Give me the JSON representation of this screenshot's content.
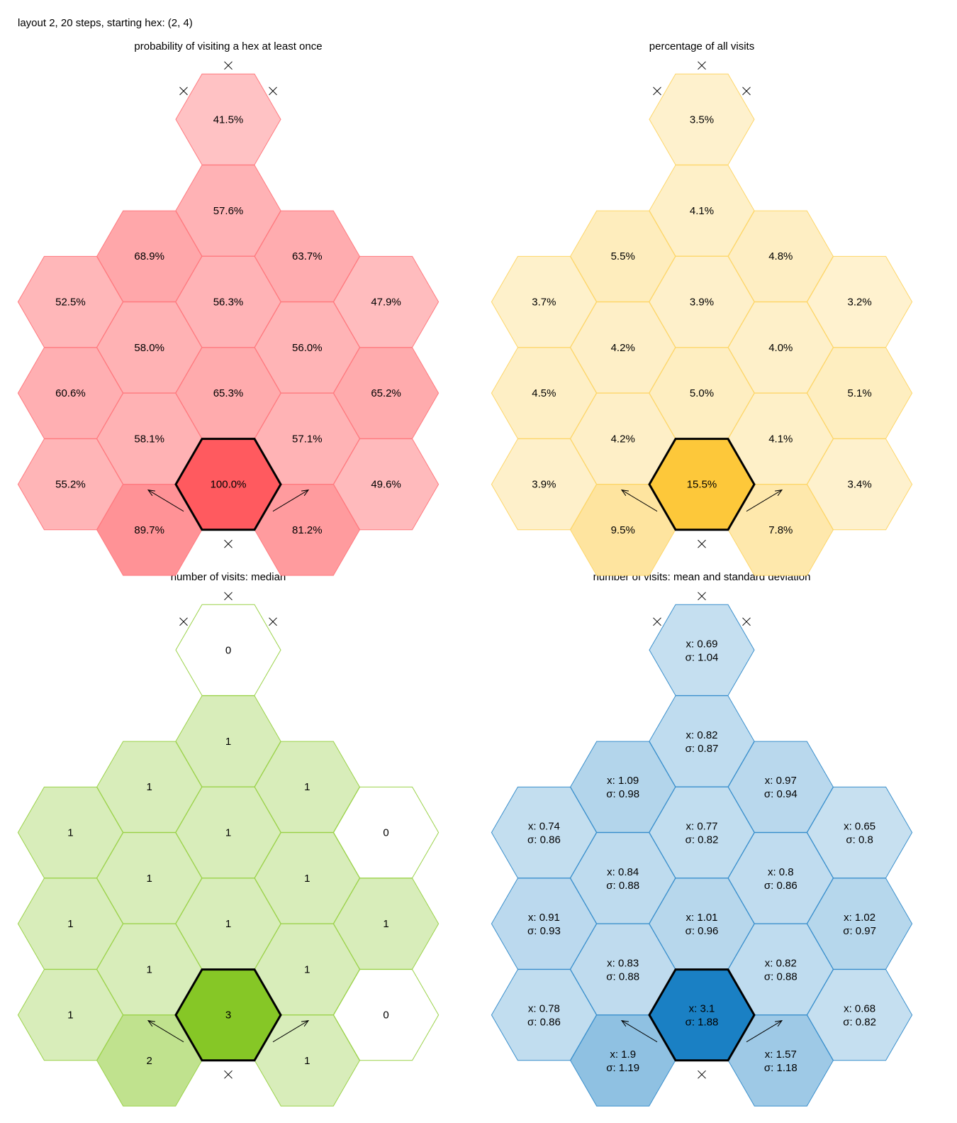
{
  "header": "layout 2, 20 steps, starting hex: (2, 4)",
  "chart_data": [
    {
      "type": "heatmap",
      "title": "probability of visiting a hex at least once",
      "accent_color": "#ff5a5f",
      "border_color": "#ff7a7f",
      "start_hex": "2,4",
      "cells": [
        {
          "hex": "2,0",
          "label": "41.5%",
          "value": 0.415
        },
        {
          "hex": "1,1",
          "label": "68.9%",
          "value": 0.689
        },
        {
          "hex": "3,1",
          "label": "63.7%",
          "value": 0.637
        },
        {
          "hex": "0,1",
          "label": "52.5%",
          "value": 0.525
        },
        {
          "hex": "2,1",
          "label": "57.6%",
          "value": 0.576
        },
        {
          "hex": "4,1",
          "label": "47.9%",
          "value": 0.479
        },
        {
          "hex": "1,2",
          "label": "58.0%",
          "value": 0.58
        },
        {
          "hex": "3,2",
          "label": "56.0%",
          "value": 0.56
        },
        {
          "hex": "0,2",
          "label": "60.6%",
          "value": 0.606
        },
        {
          "hex": "2,2",
          "label": "56.3%",
          "value": 0.563
        },
        {
          "hex": "4,2",
          "label": "65.2%",
          "value": 0.652
        },
        {
          "hex": "1,3",
          "label": "58.1%",
          "value": 0.581
        },
        {
          "hex": "3,3",
          "label": "57.1%",
          "value": 0.571
        },
        {
          "hex": "0,3",
          "label": "55.2%",
          "value": 0.552
        },
        {
          "hex": "2,3",
          "label": "65.3%",
          "value": 0.653
        },
        {
          "hex": "4,3",
          "label": "49.6%",
          "value": 0.496
        },
        {
          "hex": "1,4",
          "label": "89.7%",
          "value": 0.897
        },
        {
          "hex": "3,4",
          "label": "81.2%",
          "value": 0.812
        },
        {
          "hex": "2,4",
          "label": "100.0%",
          "value": 1.0
        }
      ]
    },
    {
      "type": "heatmap",
      "title": "percentage of all visits",
      "accent_color": "#fdc83a",
      "border_color": "#fdd66a",
      "start_hex": "2,4",
      "cells": [
        {
          "hex": "2,0",
          "label": "3.5%",
          "value": 0.035
        },
        {
          "hex": "1,1",
          "label": "5.5%",
          "value": 0.055
        },
        {
          "hex": "3,1",
          "label": "4.8%",
          "value": 0.048
        },
        {
          "hex": "0,1",
          "label": "3.7%",
          "value": 0.037
        },
        {
          "hex": "2,1",
          "label": "4.1%",
          "value": 0.041
        },
        {
          "hex": "4,1",
          "label": "3.2%",
          "value": 0.032
        },
        {
          "hex": "1,2",
          "label": "4.2%",
          "value": 0.042
        },
        {
          "hex": "3,2",
          "label": "4.0%",
          "value": 0.04
        },
        {
          "hex": "0,2",
          "label": "4.5%",
          "value": 0.045
        },
        {
          "hex": "2,2",
          "label": "3.9%",
          "value": 0.039
        },
        {
          "hex": "4,2",
          "label": "5.1%",
          "value": 0.051
        },
        {
          "hex": "1,3",
          "label": "4.2%",
          "value": 0.042
        },
        {
          "hex": "3,3",
          "label": "4.1%",
          "value": 0.041
        },
        {
          "hex": "0,3",
          "label": "3.9%",
          "value": 0.039
        },
        {
          "hex": "2,3",
          "label": "5.0%",
          "value": 0.05
        },
        {
          "hex": "4,3",
          "label": "3.4%",
          "value": 0.034
        },
        {
          "hex": "1,4",
          "label": "9.5%",
          "value": 0.095
        },
        {
          "hex": "3,4",
          "label": "7.8%",
          "value": 0.078
        },
        {
          "hex": "2,4",
          "label": "15.5%",
          "value": 0.155
        }
      ]
    },
    {
      "type": "heatmap",
      "title": "number of visits: median",
      "accent_color": "#86c726",
      "border_color": "#9bd24a",
      "start_hex": "2,4",
      "cells": [
        {
          "hex": "2,0",
          "label": "0",
          "value": 0
        },
        {
          "hex": "1,1",
          "label": "1",
          "value": 1
        },
        {
          "hex": "3,1",
          "label": "1",
          "value": 1
        },
        {
          "hex": "0,1",
          "label": "1",
          "value": 1
        },
        {
          "hex": "2,1",
          "label": "1",
          "value": 1
        },
        {
          "hex": "4,1",
          "label": "0",
          "value": 0
        },
        {
          "hex": "1,2",
          "label": "1",
          "value": 1
        },
        {
          "hex": "3,2",
          "label": "1",
          "value": 1
        },
        {
          "hex": "0,2",
          "label": "1",
          "value": 1
        },
        {
          "hex": "2,2",
          "label": "1",
          "value": 1
        },
        {
          "hex": "4,2",
          "label": "1",
          "value": 1
        },
        {
          "hex": "1,3",
          "label": "1",
          "value": 1
        },
        {
          "hex": "3,3",
          "label": "1",
          "value": 1
        },
        {
          "hex": "0,3",
          "label": "1",
          "value": 1
        },
        {
          "hex": "2,3",
          "label": "1",
          "value": 1
        },
        {
          "hex": "4,3",
          "label": "0",
          "value": 0
        },
        {
          "hex": "1,4",
          "label": "2",
          "value": 2
        },
        {
          "hex": "3,4",
          "label": "1",
          "value": 1
        },
        {
          "hex": "2,4",
          "label": "3",
          "value": 3
        }
      ]
    },
    {
      "type": "heatmap",
      "title": "number of visits: mean and standard deviation",
      "accent_color": "#1a80c4",
      "border_color": "#3a8fcc",
      "start_hex": "2,4",
      "cells": [
        {
          "hex": "2,0",
          "label": "x: 0.69",
          "label2": "σ: 1.04",
          "value": 0.69
        },
        {
          "hex": "1,1",
          "label": "x: 1.09",
          "label2": "σ: 0.98",
          "value": 1.09
        },
        {
          "hex": "3,1",
          "label": "x: 0.97",
          "label2": "σ: 0.94",
          "value": 0.97
        },
        {
          "hex": "0,1",
          "label": "x: 0.74",
          "label2": "σ: 0.86",
          "value": 0.74
        },
        {
          "hex": "2,1",
          "label": "x: 0.82",
          "label2": "σ: 0.87",
          "value": 0.82
        },
        {
          "hex": "4,1",
          "label": "x: 0.65",
          "label2": "σ: 0.8",
          "value": 0.65
        },
        {
          "hex": "1,2",
          "label": "x: 0.84",
          "label2": "σ: 0.88",
          "value": 0.84
        },
        {
          "hex": "3,2",
          "label": "x: 0.8",
          "label2": "σ: 0.86",
          "value": 0.8
        },
        {
          "hex": "0,2",
          "label": "x: 0.91",
          "label2": "σ: 0.93",
          "value": 0.91
        },
        {
          "hex": "2,2",
          "label": "x: 0.77",
          "label2": "σ: 0.82",
          "value": 0.77
        },
        {
          "hex": "4,2",
          "label": "x: 1.02",
          "label2": "σ: 0.97",
          "value": 1.02
        },
        {
          "hex": "1,3",
          "label": "x: 0.83",
          "label2": "σ: 0.88",
          "value": 0.83
        },
        {
          "hex": "3,3",
          "label": "x: 0.82",
          "label2": "σ: 0.88",
          "value": 0.82
        },
        {
          "hex": "0,3",
          "label": "x: 0.78",
          "label2": "σ: 0.86",
          "value": 0.78
        },
        {
          "hex": "2,3",
          "label": "x: 1.01",
          "label2": "σ: 0.96",
          "value": 1.01
        },
        {
          "hex": "4,3",
          "label": "x: 0.68",
          "label2": "σ: 0.82",
          "value": 0.68
        },
        {
          "hex": "1,4",
          "label": "x: 1.9",
          "label2": "σ: 1.19",
          "value": 1.9
        },
        {
          "hex": "3,4",
          "label": "x: 1.57",
          "label2": "σ: 1.18",
          "value": 1.57
        },
        {
          "hex": "2,4",
          "label": "x: 3.1",
          "label2": "σ: 1.88",
          "value": 3.1
        }
      ]
    }
  ]
}
